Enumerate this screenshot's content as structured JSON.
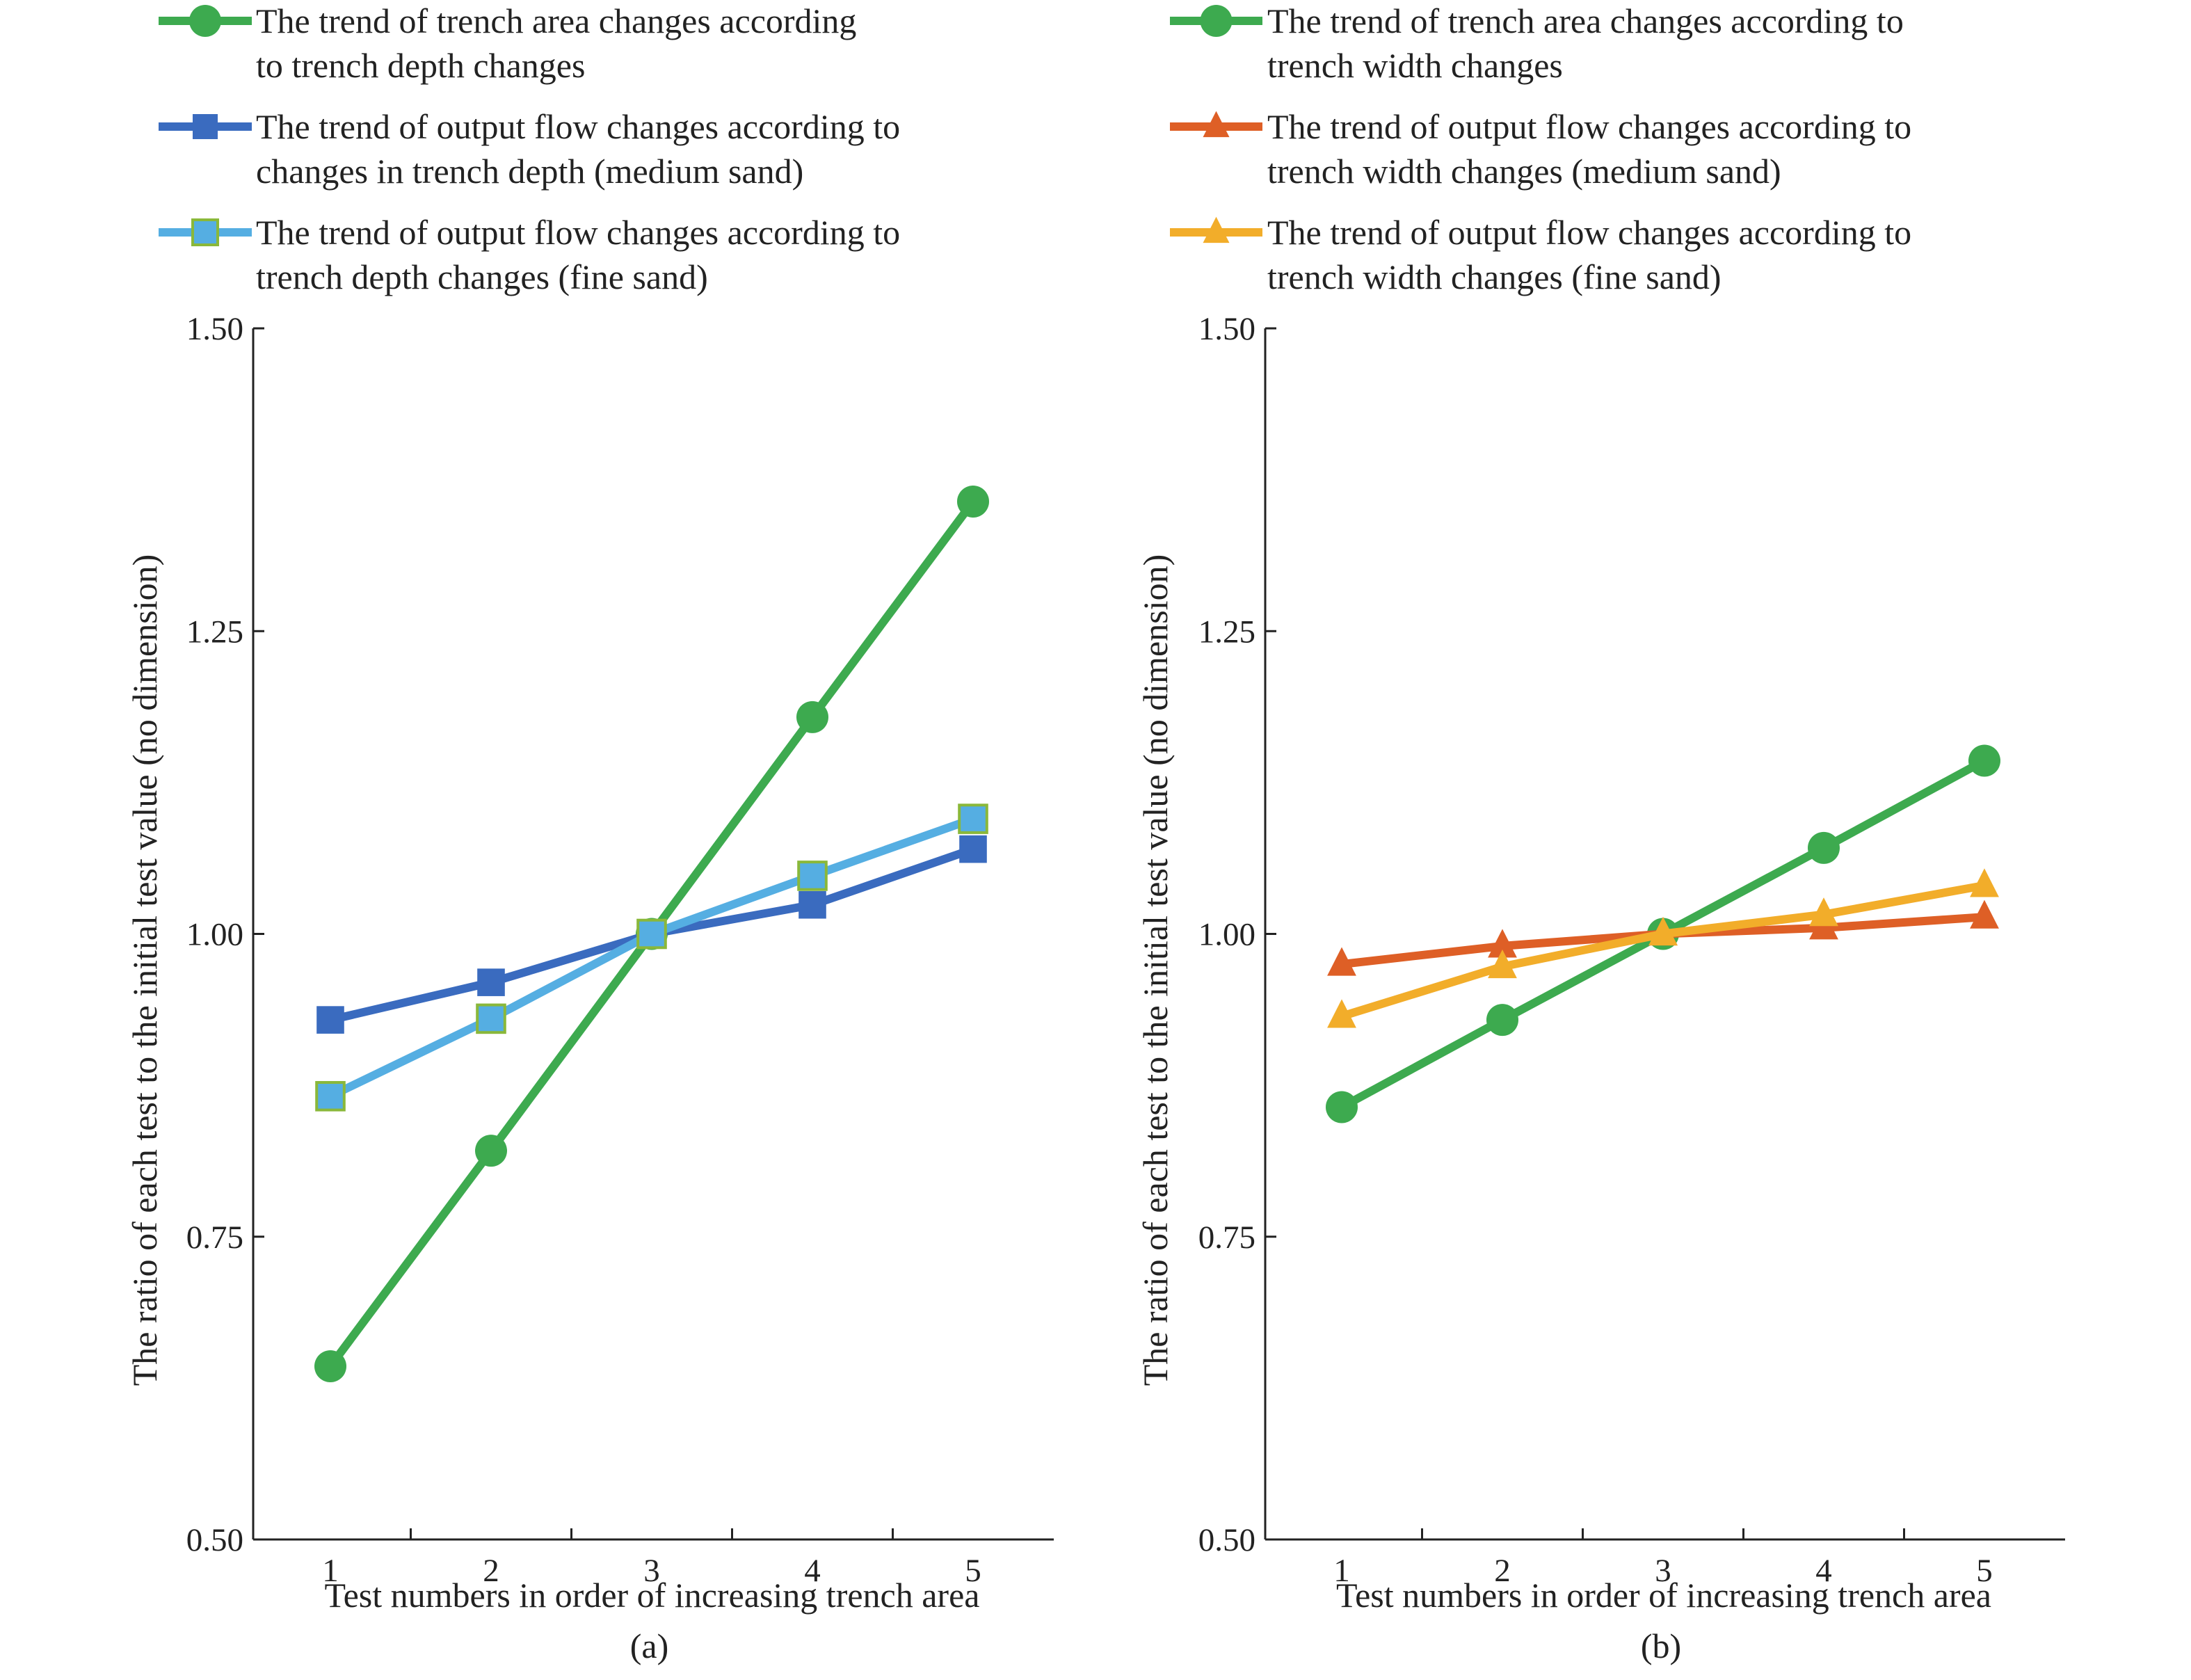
{
  "chart_data": [
    {
      "type": "line",
      "panel_label": "(a)",
      "xlabel": "Test numbers in order of increasing trench area",
      "ylabel": "The ratio of each test to the initial test value (no dimension)",
      "categories": [
        "1",
        "2",
        "3",
        "4",
        "5"
      ],
      "x": [
        1,
        2,
        3,
        4,
        5
      ],
      "ylim": [
        0.5,
        1.5
      ],
      "yticks": [
        "0.50",
        "0.75",
        "1.00",
        "1.25",
        "1.50"
      ],
      "grid": false,
      "legend_position": "top",
      "series": [
        {
          "legend_lines": [
            "The trend of trench area changes according",
            "to trench depth changes"
          ],
          "color": "#3daa4f",
          "marker": "circle",
          "values": [
            0.643,
            0.821,
            1.0,
            1.179,
            1.357
          ]
        },
        {
          "legend_lines": [
            "The trend of output flow changes according to",
            "changes in trench depth (medium sand)"
          ],
          "color": "#3a6bbf",
          "marker": "square",
          "values": [
            0.929,
            0.96,
            1.0,
            1.024,
            1.07
          ]
        },
        {
          "legend_lines": [
            "The trend of output flow changes according to",
            "trench depth changes (fine sand)"
          ],
          "color": "#55aee2",
          "marker": "square",
          "marker_edge": "#8ab83a",
          "values": [
            0.866,
            0.93,
            1.0,
            1.048,
            1.095
          ]
        }
      ]
    },
    {
      "type": "line",
      "panel_label": "(b)",
      "xlabel": "Test numbers in order of increasing trench area",
      "ylabel": "The ratio of each test to the initial test value (no dimension)",
      "categories": [
        "1",
        "2",
        "3",
        "4",
        "5"
      ],
      "x": [
        1,
        2,
        3,
        4,
        5
      ],
      "ylim": [
        0.5,
        1.5
      ],
      "yticks": [
        "0.50",
        "0.75",
        "1.00",
        "1.25",
        "1.50"
      ],
      "grid": false,
      "legend_position": "top",
      "series": [
        {
          "legend_lines": [
            "The trend of trench area changes according to",
            "trench width changes"
          ],
          "color": "#3daa4f",
          "marker": "circle",
          "values": [
            0.857,
            0.929,
            1.0,
            1.071,
            1.143
          ]
        },
        {
          "legend_lines": [
            "The trend of output flow changes according to",
            "trench width changes (medium sand)"
          ],
          "color": "#de5f26",
          "marker": "triangle",
          "values": [
            0.975,
            0.99,
            1.0,
            1.005,
            1.014
          ]
        },
        {
          "legend_lines": [
            "The trend of output flow changes according to",
            "trench width changes (fine sand)"
          ],
          "color": "#f2ad2a",
          "marker": "triangle",
          "values": [
            0.932,
            0.973,
            1.0,
            1.016,
            1.04
          ]
        }
      ]
    }
  ]
}
